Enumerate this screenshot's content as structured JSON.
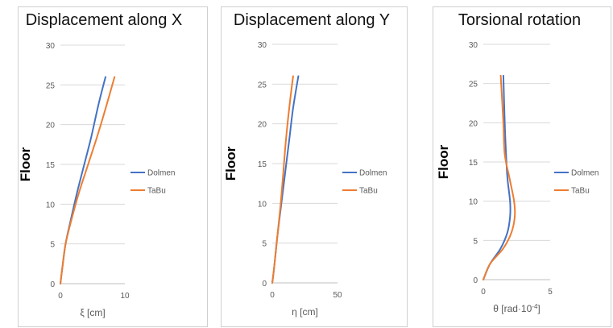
{
  "chart_data": [
    {
      "type": "line",
      "title": "Displacement along X",
      "xlabel": "ξ [cm]",
      "ylabel": "Floor",
      "xlim": [
        0,
        10
      ],
      "ylim": [
        0,
        30
      ],
      "xticks": [
        0,
        10
      ],
      "yticks": [
        0,
        5,
        10,
        15,
        20,
        25,
        30
      ],
      "grid": "horizontal",
      "legend": "right",
      "series": [
        {
          "name": "Dolmen",
          "color": "#4472c4",
          "x": [
            0,
            0.3,
            0.8,
            1.6,
            2.6,
            3.7,
            4.8,
            5.9,
            7.0
          ],
          "y": [
            0,
            2,
            5,
            8,
            11.5,
            15,
            18.5,
            22.5,
            26
          ]
        },
        {
          "name": "TaBu",
          "color": "#ed7d31",
          "x": [
            0,
            0.3,
            0.8,
            1.7,
            2.9,
            4.3,
            5.7,
            7.0,
            8.4
          ],
          "y": [
            0,
            2,
            5,
            8,
            11.5,
            15,
            18.5,
            22,
            26
          ]
        }
      ]
    },
    {
      "type": "line",
      "title": "Displacement along Y",
      "xlabel": "η [cm]",
      "ylabel": "Floor",
      "xlim": [
        0,
        50
      ],
      "ylim": [
        0,
        30
      ],
      "xticks": [
        0,
        50
      ],
      "yticks": [
        0,
        5,
        10,
        15,
        20,
        25,
        30
      ],
      "grid": "horizontal",
      "legend": "right",
      "series": [
        {
          "name": "Dolmen",
          "color": "#4472c4",
          "x": [
            0,
            1.5,
            4,
            7,
            10,
            13,
            16,
            20
          ],
          "y": [
            0,
            2,
            6,
            10,
            14,
            18,
            22,
            26
          ]
        },
        {
          "name": "TaBu",
          "color": "#ed7d31",
          "x": [
            0,
            1.5,
            4,
            6.5,
            8.5,
            10.5,
            13,
            16
          ],
          "y": [
            0,
            2,
            6,
            10,
            14,
            18,
            22,
            26
          ]
        }
      ]
    },
    {
      "type": "line",
      "title": "Torsional rotation",
      "xlabel": "θ [rad·10",
      "xlabel_sup": "-4",
      "xlabel_end": "]",
      "ylabel": "Floor",
      "xlim": [
        0,
        5
      ],
      "ylim": [
        0,
        30
      ],
      "xticks": [
        0,
        5
      ],
      "yticks": [
        0,
        5,
        10,
        15,
        20,
        25,
        30
      ],
      "grid": "horizontal",
      "legend": "right",
      "series": [
        {
          "name": "Dolmen",
          "color": "#4472c4",
          "x": [
            0,
            0.5,
            1.3,
            1.8,
            2.0,
            2.0,
            1.8,
            1.7,
            1.6,
            1.5
          ],
          "y": [
            0,
            2,
            4,
            6,
            8,
            10,
            13,
            16,
            20,
            26
          ]
        },
        {
          "name": "TaBu",
          "color": "#ed7d31",
          "x": [
            0,
            0.5,
            1.5,
            2.1,
            2.35,
            2.3,
            1.95,
            1.6,
            1.5,
            1.3
          ],
          "y": [
            0,
            2,
            4,
            6,
            8,
            10,
            13,
            16,
            20,
            26
          ]
        }
      ]
    }
  ]
}
